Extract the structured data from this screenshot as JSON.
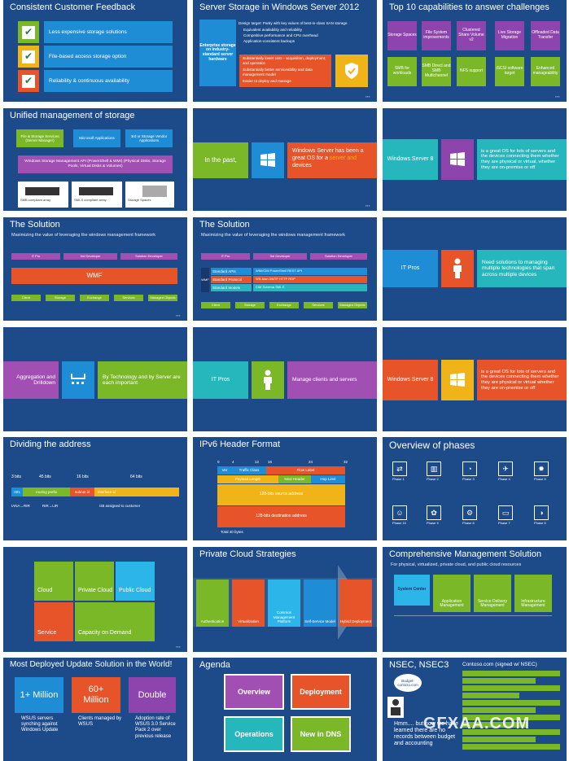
{
  "slides": {
    "s1": {
      "title": "Consistent Customer Feedback",
      "items": [
        "Less expensive storage solutions",
        "File-based access storage option",
        "Reliability & continuous availability"
      ]
    },
    "s2": {
      "title": "Server Storage in Windows Server 2012",
      "left": "Enterprise storage on industry-standard server hardware",
      "bullets_top": "Design target: Parity with key values of best-in-class SAN storage",
      "b1": "Equivalent availability and reliability",
      "b2": "Competitive performance and CPU overhead",
      "b3": "Application-consistent backups",
      "b4": "Substantially lower cost – acquisition, deployment, and operation",
      "b5": "Substantially better serviceability and data management model",
      "b6": "Easier to deploy and manage"
    },
    "s3": {
      "title": "Top 10 capabilities to answer challenges",
      "cells": [
        "Storage Spaces",
        "File System improvements",
        "Clustered Share Volume v2",
        "Live Storage Migration",
        "Offloaded Data Transfer",
        "SMB for workloads",
        "SMB Direct and SMB Multichannel",
        "NFS support",
        "iSCSI software target",
        "Enhanced manageability"
      ]
    },
    "s4": {
      "title": "Unified management of storage",
      "b1": "File & Storage Services (Server Manager)",
      "b2": "Microsoft Applications",
      "b3": "3rd or Storage Vendor Applications",
      "api": "Windows Storage Management API (PowerShell & WMI) (Physical Disks, Storage Pools, Virtual Disks & Volumes)",
      "d1": "SMB compliant array",
      "d2": "SMI-S compliant array",
      "d3": "Storage Spaces"
    },
    "s5": {
      "left": "In the past,",
      "right": "Windows Server has been a great OS for a ",
      "right2": "server and ",
      "right3": "devices"
    },
    "s6": {
      "left": "Windows Server 8",
      "right": "is a great OS for lots of servers and the devices connecting them whether they are physical or virtual, whether they are on-premise or off"
    },
    "s7": {
      "title": "The Solution",
      "sub": "Maximizing the value of leveraging the windows management framework",
      "tags": [
        "IT Pro",
        "3rd Developer",
        "Solution Developer"
      ],
      "wmf": "WMF",
      "bottom": [
        "Client",
        "Storage",
        "Exchange",
        "Services",
        "Managed Objects"
      ]
    },
    "s8": {
      "title": "The Solution",
      "sub": "Maximizing the value of leveraging the windows management framework",
      "tags": [
        "IT Pro",
        "3rd Developer",
        "Solution Developer"
      ],
      "rows": [
        "Standard APIs",
        "Standard Protocol",
        "Standard Models"
      ],
      "row1": "WMI/CIM PowerShell REST API",
      "row2": "WS-Man DMTF HTTP RDP",
      "row3": "CIM Schema SMI-S",
      "side": "WMF",
      "bottom": [
        "Client",
        "Storage",
        "Exchange",
        "Services",
        "Managed Objects"
      ]
    },
    "s9": {
      "left": "IT Pros",
      "right": "Need solutions to managing multiple technologies that span across multiple devices"
    },
    "s10": {
      "left": "Aggregation and Drilldown",
      "right": "By Technology and by Server are each important"
    },
    "s11": {
      "left": "IT Pros",
      "right": "Manage clients and servers"
    },
    "s12": {
      "left": "Windows Server 8",
      "right": "is a great OS for lots of servers and the devices connecting them whether they are physical or virtual whether they are on-premise or off"
    },
    "s13": {
      "title": "Dividing the address",
      "bits": [
        "3 bits",
        "45 bits",
        "16 bits",
        "64 bits"
      ],
      "segs": [
        "001",
        "routing prefix",
        "subnet id",
        "interface id"
      ],
      "bot": [
        "IANA→RIR",
        "RIR→LIR",
        "/48 assigned to customer"
      ]
    },
    "s14": {
      "title": "IPv6 Header Format",
      "nums": [
        "0",
        "4",
        "12",
        "16",
        "24",
        "32"
      ],
      "r1": [
        "Ver",
        "Traffic Class",
        "Flow Label"
      ],
      "r2": [
        "Payload Length",
        "Next Header",
        "Hop Limit"
      ],
      "r3": "128-bits source address",
      "r4": "128-bits destination address",
      "total": "Total 40 bytes"
    },
    "s15": {
      "title": "Overview of phases",
      "phases": [
        "Phase 1",
        "Phase 2",
        "Phase 3",
        "Phase 4",
        "Phase 5",
        "Phase 10",
        "Phase 9",
        "Phase 8",
        "Phase 7",
        "Phase 6"
      ]
    },
    "s16": {
      "cells": [
        "Cloud",
        "Private Cloud",
        "Public Cloud",
        "Service",
        "Capacity on Demand"
      ]
    },
    "s17": {
      "title": "Private Cloud Strategies",
      "cells": [
        "Authentication",
        "Virtualization",
        "Common Management Platform",
        "Self-Service Model",
        "Hybrid Deployment"
      ]
    },
    "s18": {
      "title": "Comprehensive Management Solution",
      "sub": "For physical, virtualized, private cloud, and public cloud resources",
      "cols": [
        "System Center",
        "Application Management",
        "Service Delivery Management",
        "Infrastructure Management"
      ]
    },
    "s19": {
      "title": "Most Deployed Update Solution in the World!",
      "n1": "1+ Million",
      "n2": "60+ Million",
      "n3": "Double",
      "t1": "WSUS servers synching against Windows Update",
      "t2": "Clients managed by WSUS",
      "t3": "Adoption rate of WSUS 3.0 Service Pack 2 over previous release"
    },
    "s20": {
      "title": "Agenda",
      "cells": [
        "Overview",
        "Deployment",
        "Operations",
        "New in DNS"
      ]
    },
    "s21": {
      "title": "NSEC, NSEC3",
      "sub": "Contoso.com (signed w/ NSEC)",
      "bubble": "Budget-contoso.com",
      "hmm": "Hmm.... but now we have learned there are no records between budget and accounting"
    }
  },
  "watermark": "GFXAA.COM"
}
